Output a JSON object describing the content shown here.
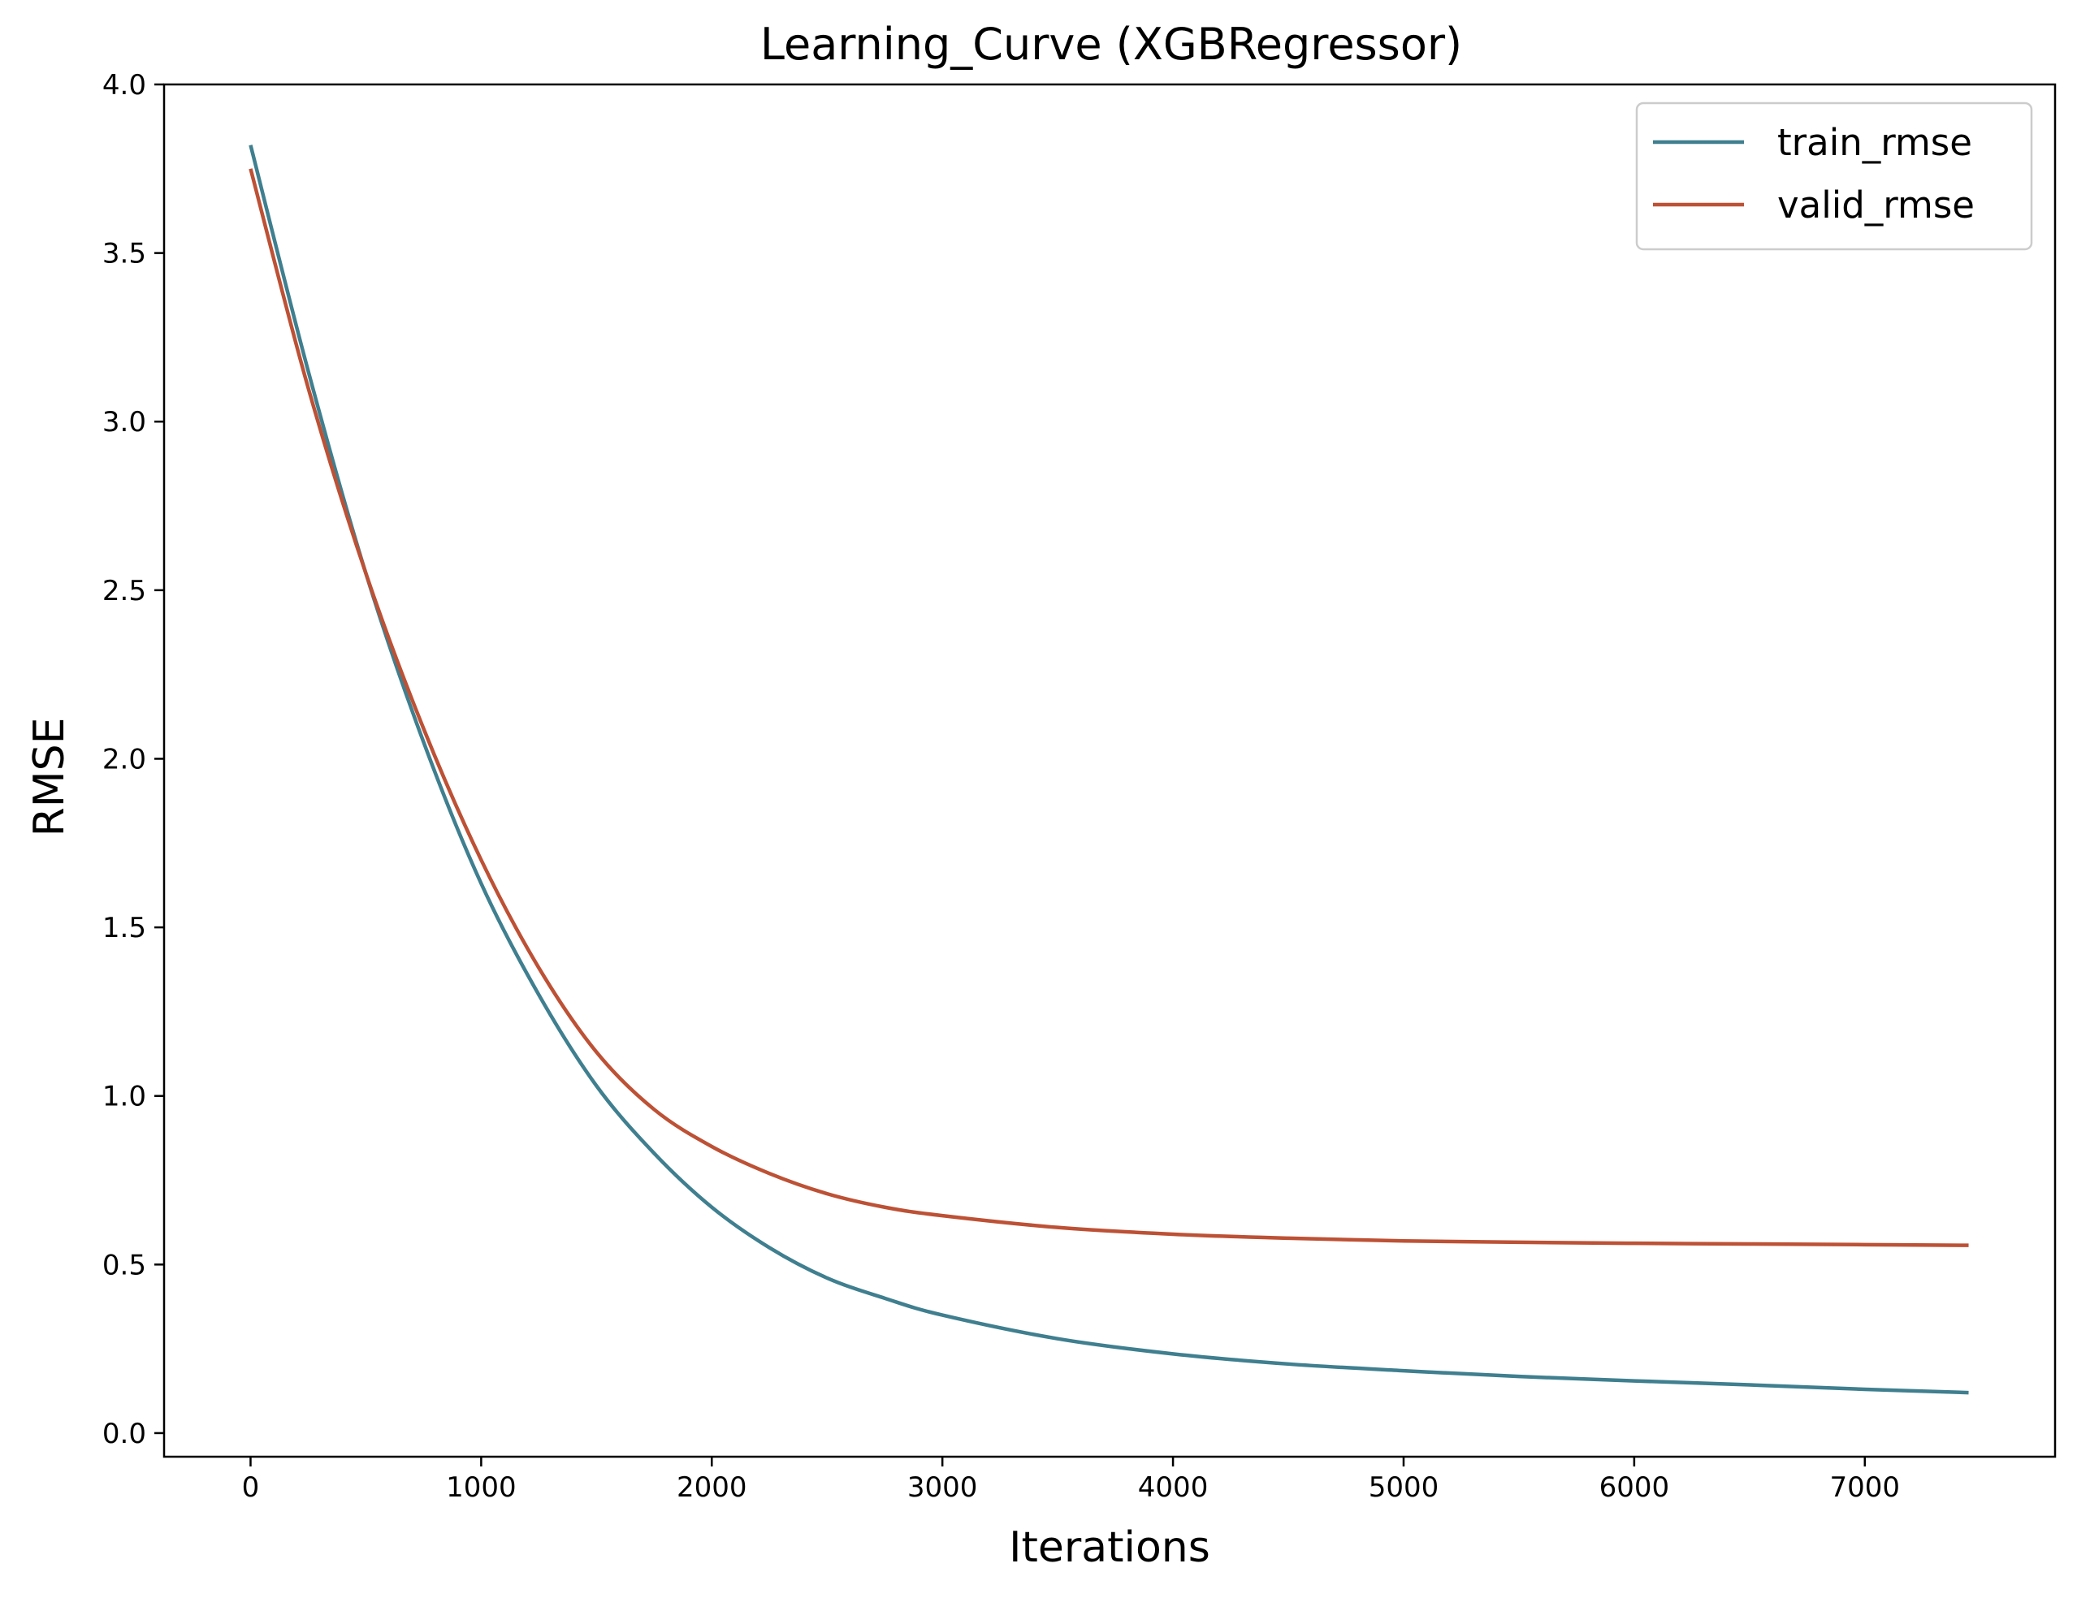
{
  "colors": {
    "train": "#3f7f8f",
    "valid": "#bd5135"
  },
  "chart_data": {
    "type": "line",
    "title": "Learning_Curve (XGBRegressor)",
    "xlabel": "Iterations",
    "ylabel": "RMSE",
    "xlim": [
      -375,
      7825
    ],
    "ylim": [
      -0.07,
      4.0
    ],
    "xticks": [
      0,
      1000,
      2000,
      3000,
      4000,
      5000,
      6000,
      7000
    ],
    "xtick_labels": [
      "0",
      "1000",
      "2000",
      "3000",
      "4000",
      "5000",
      "6000",
      "7000"
    ],
    "yticks": [
      0.0,
      0.5,
      1.0,
      1.5,
      2.0,
      2.5,
      3.0,
      3.5,
      4.0
    ],
    "ytick_labels": [
      "0.0",
      "0.5",
      "1.0",
      "1.5",
      "2.0",
      "2.5",
      "3.0",
      "3.5",
      "4.0"
    ],
    "grid": false,
    "legend_position": "top-right",
    "x": [
      0,
      250,
      500,
      750,
      1000,
      1250,
      1500,
      1750,
      2000,
      2250,
      2500,
      2750,
      3000,
      3500,
      4000,
      4500,
      5000,
      5500,
      6000,
      6500,
      7000,
      7450
    ],
    "series": [
      {
        "name": "train_rmse",
        "color": "#3f7f8f",
        "values": [
          3.82,
          3.15,
          2.55,
          2.05,
          1.63,
          1.3,
          1.03,
          0.83,
          0.67,
          0.55,
          0.46,
          0.4,
          0.35,
          0.28,
          0.235,
          0.205,
          0.185,
          0.168,
          0.155,
          0.143,
          0.13,
          0.12
        ]
      },
      {
        "name": "valid_rmse",
        "color": "#bd5135",
        "values": [
          3.75,
          3.1,
          2.55,
          2.09,
          1.7,
          1.38,
          1.13,
          0.96,
          0.85,
          0.77,
          0.71,
          0.67,
          0.645,
          0.61,
          0.59,
          0.578,
          0.57,
          0.566,
          0.563,
          0.561,
          0.559,
          0.557
        ]
      }
    ]
  }
}
